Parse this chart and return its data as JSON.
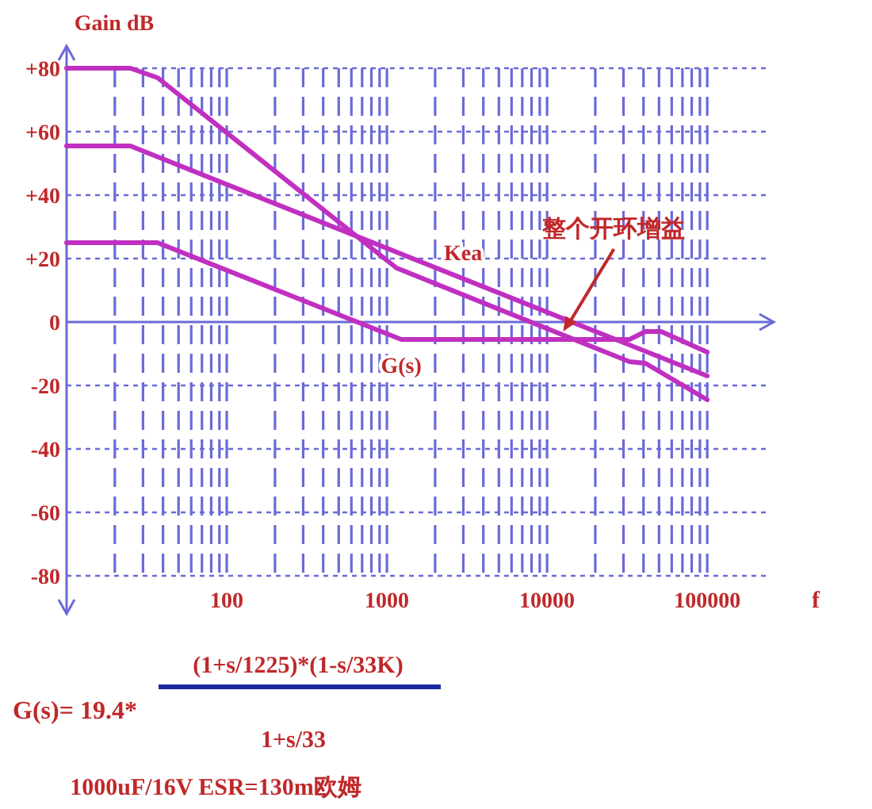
{
  "chart_data": {
    "type": "line",
    "ylabel": "Gain dB",
    "xlabel": "f",
    "log": "x",
    "grid": true,
    "ref_lines": [
      {
        "axis": "y",
        "value": 0,
        "color": "#6a6ad8",
        "line_style": "solid"
      }
    ],
    "marker": "none",
    "line_style": "solid",
    "xlim": [
      10,
      260000
    ],
    "ylim": [
      -92,
      87
    ],
    "xticks": [
      {
        "value": 20,
        "label": null
      },
      {
        "value": 30,
        "label": null
      },
      {
        "value": 40,
        "label": null
      },
      {
        "value": 50,
        "label": null
      },
      {
        "value": 60,
        "label": null
      },
      {
        "value": 70,
        "label": null
      },
      {
        "value": 80,
        "label": null
      },
      {
        "value": 90,
        "label": null
      },
      100,
      {
        "value": 200,
        "label": null
      },
      {
        "value": 300,
        "label": null
      },
      {
        "value": 400,
        "label": null
      },
      {
        "value": 500,
        "label": null
      },
      {
        "value": 600,
        "label": null
      },
      {
        "value": 700,
        "label": null
      },
      {
        "value": 800,
        "label": null
      },
      {
        "value": 900,
        "label": null
      },
      1000,
      {
        "value": 2000,
        "label": null
      },
      {
        "value": 3000,
        "label": null
      },
      {
        "value": 4000,
        "label": null
      },
      {
        "value": 5000,
        "label": null
      },
      {
        "value": 6000,
        "label": null
      },
      {
        "value": 7000,
        "label": null
      },
      {
        "value": 8000,
        "label": null
      },
      {
        "value": 9000,
        "label": null
      },
      10000,
      {
        "value": 20000,
        "label": null
      },
      {
        "value": 30000,
        "label": null
      },
      {
        "value": 40000,
        "label": null
      },
      {
        "value": 50000,
        "label": null
      },
      {
        "value": 60000,
        "label": null
      },
      {
        "value": 70000,
        "label": null
      },
      {
        "value": 80000,
        "label": null
      },
      {
        "value": 90000,
        "label": null
      },
      100000
    ],
    "yticks": [
      {
        "value": 80,
        "label": "+80"
      },
      {
        "value": 60,
        "label": "+60"
      },
      {
        "value": 40,
        "label": "+40"
      },
      {
        "value": 20,
        "label": "+20"
      },
      0,
      -20,
      -40,
      -60,
      -80
    ],
    "series": [
      {
        "color": "#c030c0",
        "x": [
          10,
          25,
          37,
          1150,
          32700,
          41100,
          100000
        ],
        "values": [
          80,
          80,
          77,
          17,
          -12.5,
          -13,
          -24.5
        ]
      },
      {
        "name": "Kea",
        "color": "#c030c0",
        "x": [
          10,
          25,
          100000
        ],
        "values": [
          55.5,
          55.5,
          -17
        ]
      },
      {
        "name": "G(s)",
        "color": "#c030c0",
        "x": [
          10,
          37,
          1230,
          32700,
          41100,
          51600,
          100000
        ],
        "values": [
          25,
          25,
          -5.5,
          -5.5,
          -3,
          -3,
          -9.5
        ]
      }
    ],
    "annotations": [
      {
        "text": "整个开环增益",
        "x": 12600,
        "y": -3
      },
      "G(s)= 19.4*",
      "(1+s/1225)*(1-s/33K)",
      "1+s/33",
      "1000uF/16V ESR=130m欧姆"
    ]
  }
}
